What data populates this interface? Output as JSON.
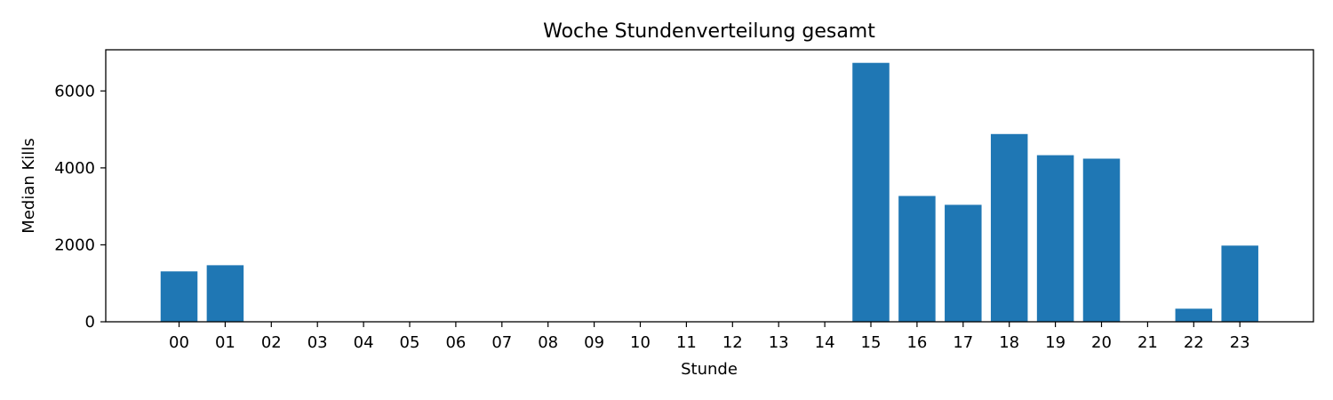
{
  "chart_data": {
    "type": "bar",
    "title": "Woche Stundenverteilung gesamt",
    "xlabel": "Stunde",
    "ylabel": "Median Kills",
    "categories": [
      "00",
      "01",
      "02",
      "03",
      "04",
      "05",
      "06",
      "07",
      "08",
      "09",
      "10",
      "11",
      "12",
      "13",
      "14",
      "15",
      "16",
      "17",
      "18",
      "19",
      "20",
      "21",
      "22",
      "23"
    ],
    "values": [
      1310,
      1470,
      0,
      0,
      0,
      10,
      0,
      0,
      0,
      0,
      0,
      0,
      10,
      5,
      0,
      6730,
      3270,
      3040,
      4880,
      4330,
      4240,
      0,
      340,
      1980
    ],
    "ylim": [
      0,
      7070
    ],
    "yticks": [
      0,
      2000,
      4000,
      6000
    ],
    "grid": false,
    "bar_color": "#1f77b4"
  }
}
